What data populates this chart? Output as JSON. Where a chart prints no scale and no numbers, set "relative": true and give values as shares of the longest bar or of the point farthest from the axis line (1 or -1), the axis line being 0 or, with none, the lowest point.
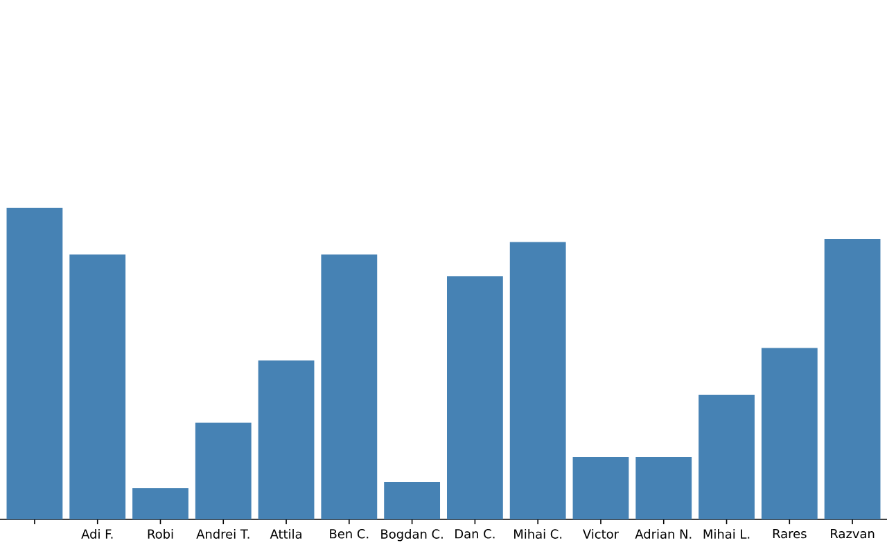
{
  "chart_data": {
    "type": "bar",
    "relative": true,
    "categories": [
      null,
      "Adi F.",
      "Robi",
      "Andrei T.",
      "Attila",
      "Ben C.",
      "Bogdan C.",
      "Dan C.",
      "Mihai C.",
      "Victor",
      "Adrian N.",
      "Mihai L.",
      "Rares",
      "Razvan"
    ],
    "values": [
      1.0,
      0.85,
      0.1,
      0.31,
      0.51,
      0.85,
      0.12,
      0.78,
      0.89,
      0.2,
      0.2,
      0.4,
      0.55,
      0.9
    ],
    "color": "#4682b4"
  }
}
